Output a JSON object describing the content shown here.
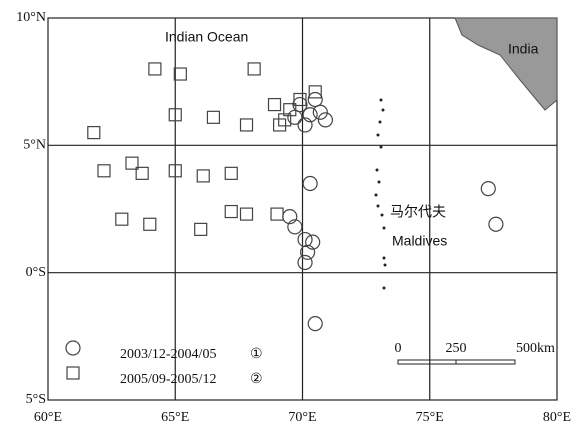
{
  "chart_data": {
    "type": "scatter",
    "xlim": [
      60,
      80
    ],
    "xticks": [
      {
        "value": 60,
        "label": "60°E"
      },
      {
        "value": 65,
        "label": "65°E"
      },
      {
        "value": 70,
        "label": "70°E"
      },
      {
        "value": 75,
        "label": "75°E"
      },
      {
        "value": 80,
        "label": "80°E"
      }
    ],
    "ylim": [
      -5,
      10
    ],
    "yticks": [
      {
        "value": -5,
        "label": "5°S"
      },
      {
        "value": 0,
        "label": "0°S"
      },
      {
        "value": 5,
        "label": "5°N"
      },
      {
        "value": 10,
        "label": "10°N"
      }
    ],
    "grid": true,
    "series": [
      {
        "name": "2003/12-2004/05",
        "label": "①",
        "marker": "circle",
        "color": "#444444",
        "x": [
          70.3,
          69.5,
          69.7,
          70.1,
          70.4,
          70.2,
          70.1,
          70.5,
          77.3,
          77.6,
          69.9,
          70.3,
          70.7,
          70.9,
          69.7,
          70.5,
          70.1
        ],
        "values": [
          3.5,
          2.2,
          1.8,
          1.3,
          1.2,
          0.8,
          0.4,
          -2.0,
          3.3,
          1.9,
          6.6,
          6.2,
          6.3,
          6.0,
          6.1,
          6.8,
          5.8
        ]
      },
      {
        "name": "2005/09-2005/12",
        "label": "②",
        "marker": "square",
        "color": "#444444",
        "x": [
          64.2,
          65.2,
          68.1,
          61.8,
          65.0,
          66.5,
          67.8,
          62.2,
          63.3,
          63.7,
          65.0,
          66.1,
          67.2,
          62.9,
          64.0,
          66.0,
          67.2,
          67.8,
          69.0,
          68.9,
          69.1,
          69.5,
          69.9,
          69.3,
          70.5
        ],
        "values": [
          8.0,
          7.8,
          8.0,
          5.5,
          6.2,
          6.1,
          5.8,
          4.0,
          4.3,
          3.9,
          4.0,
          3.8,
          3.9,
          2.1,
          1.9,
          1.7,
          2.4,
          2.3,
          2.3,
          6.6,
          5.8,
          6.4,
          6.8,
          6.0,
          7.1
        ]
      }
    ],
    "annotations": [
      "Indian Ocean",
      "India",
      "马尔代夫",
      "Maldives",
      "0",
      "250",
      "500km"
    ]
  }
}
